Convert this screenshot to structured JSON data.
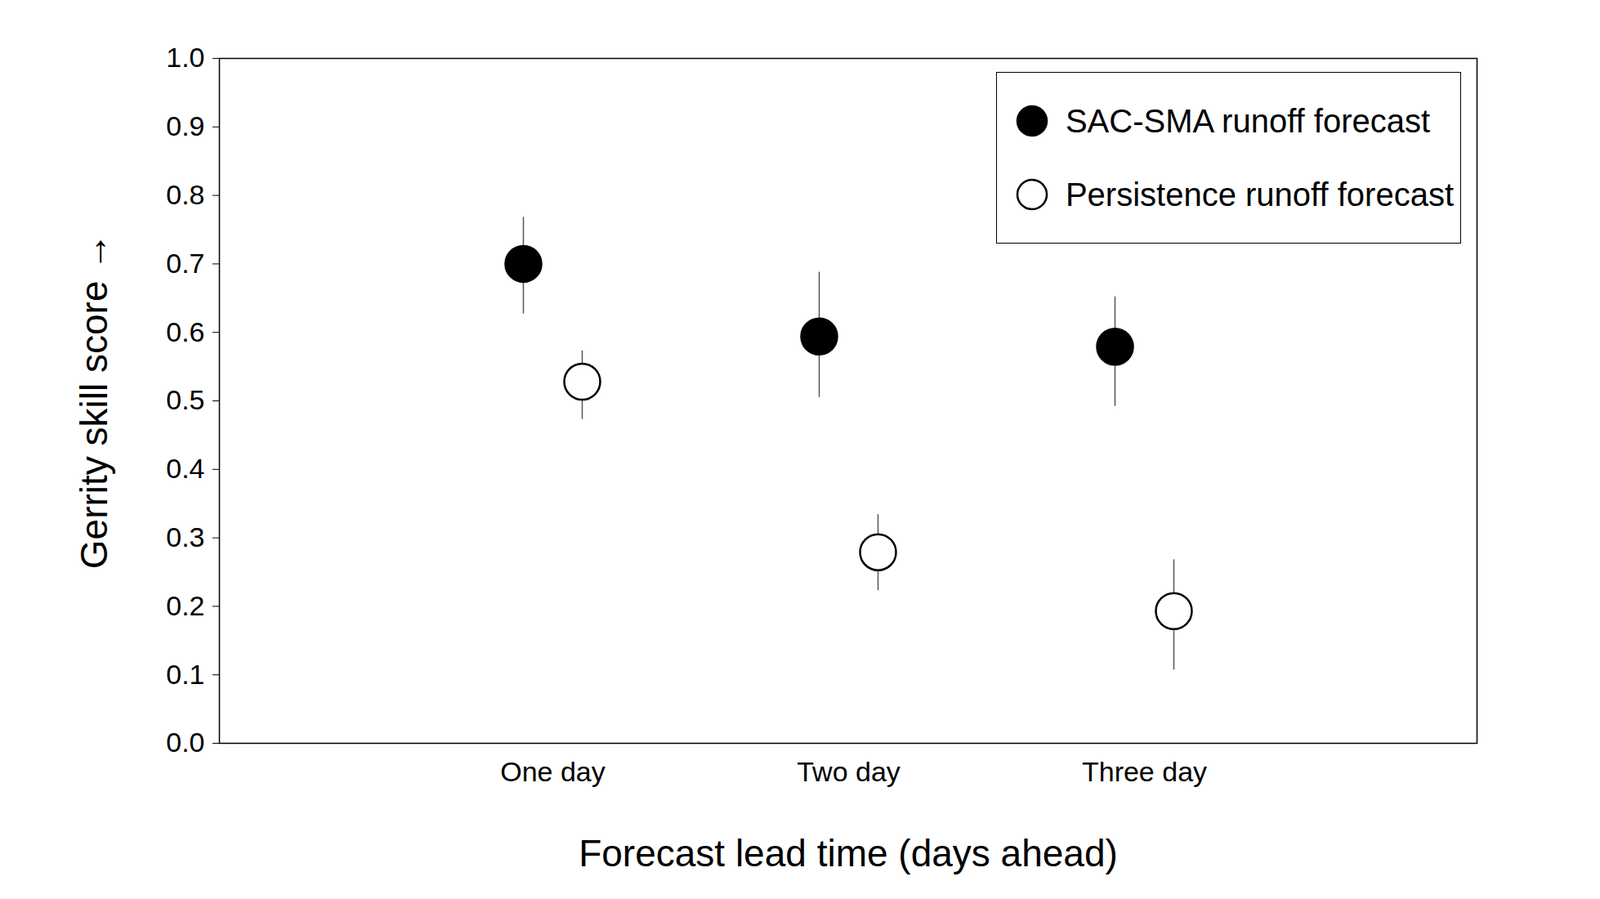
{
  "chart_data": {
    "type": "scatter",
    "xlabel": "Forecast lead time (days ahead)",
    "ylabel": "Gerrity skill score",
    "categories": [
      "One day",
      "Two day",
      "Three day"
    ],
    "series": [
      {
        "name": "SAC-SMA runoff forecast",
        "color": "#000000",
        "marker": "filled",
        "values": [
          0.7,
          0.594,
          0.579
        ],
        "error_lower": [
          0.627,
          0.505,
          0.492
        ],
        "error_upper": [
          0.768,
          0.688,
          0.652
        ]
      },
      {
        "name": "Persistence runoff forecast",
        "color": "#000000",
        "marker": "open",
        "values": [
          0.528,
          0.279,
          0.193
        ],
        "error_lower": [
          0.473,
          0.223,
          0.107
        ],
        "error_upper": [
          0.573,
          0.334,
          0.268
        ]
      }
    ],
    "ylim": [
      0,
      1
    ],
    "yticks": [
      {
        "value": 0,
        "label": "0.0"
      },
      0.1,
      0.2,
      0.3,
      0.4,
      0.5,
      0.6,
      0.7,
      0.8,
      0.9,
      {
        "value": 1,
        "label": "1.0"
      }
    ],
    "legend": "upper right",
    "grid": false
  }
}
